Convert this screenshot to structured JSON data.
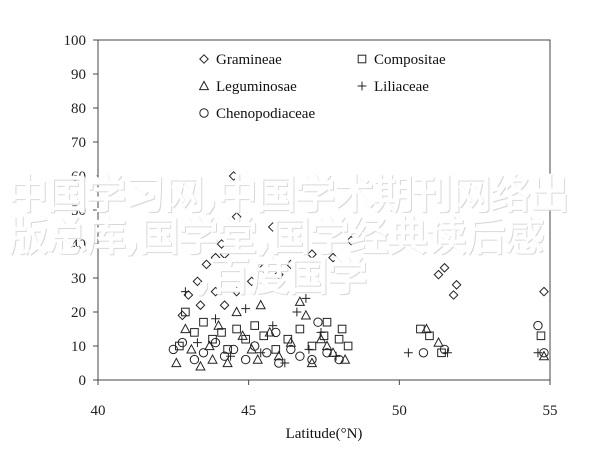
{
  "overlay": {
    "line1": "中国学习网,中国学术期刊网络出",
    "line2": "版总库,国学堂,国学经典读后感",
    "line3": ",百度国学"
  },
  "chart_data": {
    "type": "scatter",
    "title": "",
    "xlabel": "Latitude(°N)",
    "ylabel": "",
    "xlim": [
      40,
      55
    ],
    "ylim": [
      0,
      100
    ],
    "x_ticks": [
      "40",
      "45",
      "50",
      "55"
    ],
    "y_ticks": [
      "0",
      "10",
      "20",
      "30",
      "40",
      "50",
      "60",
      "70",
      "80",
      "90",
      "100"
    ],
    "grid": false,
    "legend_position": "top-left inside",
    "series": [
      {
        "name": "Gramineae",
        "marker": "diamond",
        "points": [
          [
            42.8,
            19
          ],
          [
            43.0,
            25
          ],
          [
            43.3,
            29
          ],
          [
            43.6,
            34
          ],
          [
            43.9,
            36
          ],
          [
            44.1,
            40
          ],
          [
            44.2,
            37
          ],
          [
            44.5,
            60
          ],
          [
            43.4,
            22
          ],
          [
            43.9,
            26
          ],
          [
            44.2,
            22
          ],
          [
            44.6,
            26
          ],
          [
            45.1,
            29
          ],
          [
            45.5,
            33
          ],
          [
            46.0,
            31
          ],
          [
            46.4,
            34
          ],
          [
            47.1,
            37
          ],
          [
            47.8,
            36
          ],
          [
            48.4,
            41
          ],
          [
            51.3,
            31
          ],
          [
            51.5,
            33
          ],
          [
            51.8,
            25
          ],
          [
            51.9,
            28
          ],
          [
            54.8,
            26
          ],
          [
            44.6,
            48
          ],
          [
            45.8,
            45
          ]
        ]
      },
      {
        "name": "Compositae",
        "marker": "square",
        "points": [
          [
            42.7,
            10
          ],
          [
            42.9,
            20
          ],
          [
            43.2,
            14
          ],
          [
            43.5,
            17
          ],
          [
            43.8,
            12
          ],
          [
            44.1,
            14
          ],
          [
            44.3,
            9
          ],
          [
            44.6,
            15
          ],
          [
            44.9,
            12
          ],
          [
            45.2,
            16
          ],
          [
            45.5,
            13
          ],
          [
            45.9,
            9
          ],
          [
            46.3,
            12
          ],
          [
            46.7,
            15
          ],
          [
            47.1,
            10
          ],
          [
            47.5,
            13
          ],
          [
            48.0,
            12
          ],
          [
            48.3,
            10
          ],
          [
            50.7,
            15
          ],
          [
            51.0,
            13
          ],
          [
            51.4,
            8
          ],
          [
            54.7,
            13
          ],
          [
            47.6,
            17
          ],
          [
            48.1,
            15
          ]
        ]
      },
      {
        "name": "Leguminosae",
        "marker": "triangle",
        "points": [
          [
            42.6,
            5
          ],
          [
            42.9,
            15
          ],
          [
            43.1,
            9
          ],
          [
            43.4,
            4
          ],
          [
            43.7,
            10
          ],
          [
            44.0,
            16
          ],
          [
            44.3,
            5
          ],
          [
            44.6,
            20
          ],
          [
            44.8,
            13
          ],
          [
            45.1,
            9
          ],
          [
            45.4,
            22
          ],
          [
            45.7,
            14
          ],
          [
            46.0,
            7
          ],
          [
            46.4,
            11
          ],
          [
            46.7,
            23
          ],
          [
            47.1,
            5
          ],
          [
            47.4,
            12
          ],
          [
            47.8,
            8
          ],
          [
            48.2,
            6
          ],
          [
            50.9,
            15
          ],
          [
            51.3,
            11
          ],
          [
            54.8,
            7
          ],
          [
            43.8,
            6
          ],
          [
            45.3,
            6
          ],
          [
            46.9,
            19
          ],
          [
            47.6,
            10
          ]
        ]
      },
      {
        "name": "Liliaceae",
        "marker": "plus",
        "points": [
          [
            42.9,
            26
          ],
          [
            43.3,
            11
          ],
          [
            43.9,
            18
          ],
          [
            44.4,
            7
          ],
          [
            44.9,
            21
          ],
          [
            45.4,
            8
          ],
          [
            45.8,
            16
          ],
          [
            46.2,
            5
          ],
          [
            46.6,
            20
          ],
          [
            47.0,
            9
          ],
          [
            47.4,
            14
          ],
          [
            47.9,
            7
          ],
          [
            50.3,
            8
          ],
          [
            51.6,
            8
          ],
          [
            54.6,
            8
          ],
          [
            46.9,
            24
          ]
        ]
      },
      {
        "name": "Chenopodiaceae",
        "marker": "circle",
        "points": [
          [
            42.5,
            9
          ],
          [
            42.8,
            11
          ],
          [
            43.2,
            6
          ],
          [
            43.5,
            8
          ],
          [
            43.9,
            11
          ],
          [
            44.2,
            7
          ],
          [
            44.5,
            9
          ],
          [
            44.9,
            6
          ],
          [
            45.2,
            10
          ],
          [
            45.6,
            8
          ],
          [
            46.0,
            5
          ],
          [
            46.4,
            9
          ],
          [
            46.7,
            7
          ],
          [
            47.1,
            6
          ],
          [
            47.6,
            8
          ],
          [
            48.0,
            6
          ],
          [
            50.8,
            8
          ],
          [
            51.5,
            9
          ],
          [
            54.6,
            16
          ],
          [
            54.8,
            8
          ],
          [
            47.3,
            17
          ],
          [
            45.9,
            14
          ]
        ]
      }
    ]
  }
}
